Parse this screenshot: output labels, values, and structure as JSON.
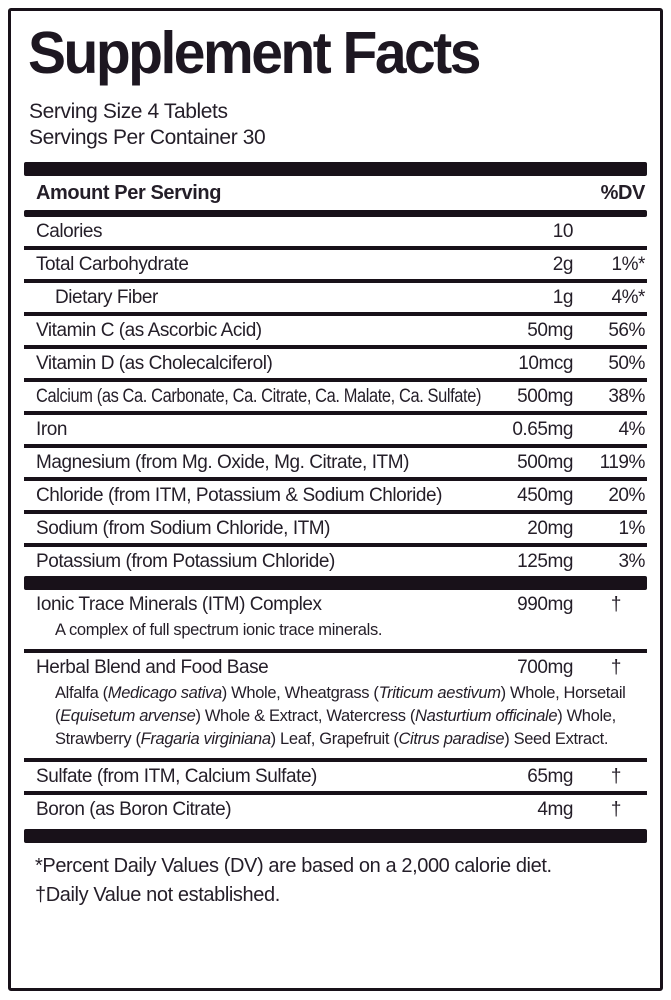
{
  "label": {
    "title": "Supplement Facts",
    "serving_size": "Serving Size 4 Tablets",
    "servings_per_container": "Servings Per Container 30",
    "columns": {
      "amount_header": "Amount Per Serving",
      "dv_header": "%DV"
    },
    "rows": [
      {
        "name": "Calories",
        "amount": "10",
        "dv": ""
      },
      {
        "name": "Total Carbohydrate",
        "amount": "2g",
        "dv": "1%*"
      },
      {
        "name": "Dietary Fiber",
        "amount": "1g",
        "dv": "4%*",
        "indent": true
      },
      {
        "name": "Vitamin C (as Ascorbic Acid)",
        "amount": "50mg",
        "dv": "56%"
      },
      {
        "name": "Vitamin D (as Cholecalciferol)",
        "amount": "10mcg",
        "dv": "50%"
      },
      {
        "name": "Calcium (as Ca. Carbonate, Ca. Citrate, Ca. Malate, Ca. Sulfate)",
        "amount": "500mg",
        "dv": "38%"
      },
      {
        "name": "Iron",
        "amount": "0.65mg",
        "dv": "4%"
      },
      {
        "name": "Magnesium (from Mg. Oxide, Mg. Citrate, ITM)",
        "amount": "500mg",
        "dv": "119%"
      },
      {
        "name": "Chloride (from ITM, Potassium & Sodium Chloride)",
        "amount": "450mg",
        "dv": "20%"
      },
      {
        "name": "Sodium (from Sodium Chloride, ITM)",
        "amount": "20mg",
        "dv": "1%"
      },
      {
        "name": "Potassium (from Potassium Chloride)",
        "amount": "125mg",
        "dv": "3%"
      },
      {
        "name": "Ionic Trace Minerals (ITM) Complex",
        "amount": "990mg",
        "dv": "†",
        "bar_before": true,
        "desc": [
          {
            "t": "A complex of full spectrum ionic trace minerals.",
            "i": false
          }
        ]
      },
      {
        "name": "Herbal Blend and Food Base",
        "amount": "700mg",
        "dv": "†",
        "desc": [
          {
            "t": "Alfalfa (",
            "i": false
          },
          {
            "t": "Medicago sativa",
            "i": true
          },
          {
            "t": ") Whole, Wheatgrass (",
            "i": false
          },
          {
            "t": "Triticum aestivum",
            "i": true
          },
          {
            "t": ") Whole, Horsetail (",
            "i": false
          },
          {
            "t": "Equisetum arvense",
            "i": true
          },
          {
            "t": ") Whole & Extract, Watercress (",
            "i": false
          },
          {
            "t": "Nasturtium officinale",
            "i": true
          },
          {
            "t": ") Whole, Strawberry (",
            "i": false
          },
          {
            "t": "Fragaria virginiana",
            "i": true
          },
          {
            "t": ") Leaf, Grapefruit (",
            "i": false
          },
          {
            "t": "Citrus paradise",
            "i": true
          },
          {
            "t": ") Seed Extract.",
            "i": false
          }
        ]
      },
      {
        "name": "Sulfate (from ITM, Calcium Sulfate)",
        "amount": "65mg",
        "dv": "†"
      },
      {
        "name": "Boron (as Boron Citrate)",
        "amount": "4mg",
        "dv": "†"
      }
    ],
    "footnotes": [
      "*Percent Daily Values (DV) are based on a 2,000 calorie diet.",
      "†Daily Value not established."
    ]
  }
}
